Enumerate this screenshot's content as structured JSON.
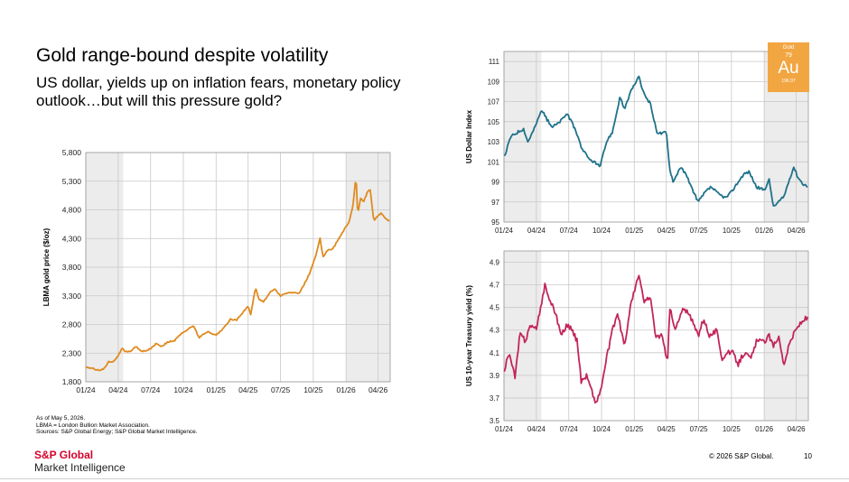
{
  "slide": {
    "title": "Gold range-bound despite volatility",
    "subtitle": "US dollar, yields up on inflation fears, monetary policy outlook…but will this pressure gold?",
    "notes": [
      "As of May 5, 2026.",
      "LBMA = London Bullion Market Association.",
      "Sources: S&P Global Energy; S&P Global Market Intelligence."
    ],
    "logo_brand": "S&P Global",
    "logo_sub": "Market Intelligence",
    "copyright": "© 2026 S&P Global.",
    "page_number": "10"
  },
  "badge": {
    "name": "Gold",
    "number": "79",
    "symbol": "Au",
    "weight": "196.97",
    "color": "#f2a641"
  },
  "chart_data": [
    {
      "type": "line",
      "ylabel": "LBMA gold price ($/oz)",
      "x_ticks": [
        "01/24",
        "04/24",
        "07/24",
        "10/24",
        "01/25",
        "04/25",
        "07/25",
        "10/25",
        "01/26",
        "04/26"
      ],
      "x_range": [
        "2024-01-01",
        "2026-05-05"
      ],
      "ylim": [
        1800,
        5800
      ],
      "y_ticks": [
        1800,
        2300,
        2800,
        3300,
        3800,
        4300,
        4800,
        5300,
        5800
      ],
      "y_tick_labels": [
        "1,800",
        "2,300",
        "2,800",
        "3,300",
        "3,800",
        "4,300",
        "4,800",
        "5,300",
        "5,800"
      ],
      "shaded_periods": [
        [
          "2024-01-01",
          "2024-04-15"
        ],
        [
          "2026-01-01",
          "2026-05-05"
        ]
      ],
      "grid": true,
      "color": "#e08a1e",
      "series": [
        {
          "x": [
            "2024-01-02",
            "2024-01-20",
            "2024-02-10",
            "2024-02-20",
            "2024-03-05",
            "2024-03-20",
            "2024-04-05",
            "2024-04-12",
            "2024-04-20",
            "2024-05-05",
            "2024-05-20",
            "2024-06-05",
            "2024-06-20",
            "2024-07-05",
            "2024-07-17",
            "2024-08-01",
            "2024-08-20",
            "2024-09-05",
            "2024-09-25",
            "2024-10-15",
            "2024-10-30",
            "2024-11-14",
            "2024-11-25",
            "2024-12-10",
            "2024-12-31",
            "2025-01-20",
            "2025-02-10",
            "2025-02-28",
            "2025-03-20",
            "2025-04-01",
            "2025-04-08",
            "2025-04-22",
            "2025-05-01",
            "2025-05-15",
            "2025-06-01",
            "2025-06-15",
            "2025-07-01",
            "2025-07-20",
            "2025-08-05",
            "2025-08-20",
            "2025-09-01",
            "2025-09-20",
            "2025-10-08",
            "2025-10-20",
            "2025-10-28",
            "2025-11-10",
            "2025-11-25",
            "2025-12-10",
            "2025-12-26",
            "2026-01-10",
            "2026-01-20",
            "2026-01-29",
            "2026-02-03",
            "2026-02-10",
            "2026-02-20",
            "2026-03-01",
            "2026-03-10",
            "2026-03-20",
            "2026-04-01",
            "2026-04-10",
            "2026-04-20",
            "2026-05-05"
          ],
          "values": [
            2060,
            2030,
            2000,
            2025,
            2150,
            2160,
            2300,
            2390,
            2320,
            2330,
            2420,
            2330,
            2340,
            2400,
            2470,
            2420,
            2500,
            2510,
            2640,
            2720,
            2780,
            2570,
            2620,
            2680,
            2610,
            2720,
            2890,
            2880,
            3030,
            3120,
            2980,
            3440,
            3240,
            3200,
            3360,
            3420,
            3300,
            3350,
            3360,
            3330,
            3450,
            3680,
            4000,
            4300,
            3980,
            4100,
            4120,
            4280,
            4450,
            4600,
            4850,
            5400,
            4700,
            5000,
            4950,
            5100,
            5150,
            4600,
            4700,
            4750,
            4650,
            4600
          ]
        }
      ]
    },
    {
      "type": "line",
      "ylabel": "US Dollar Index",
      "x_ticks": [
        "01/24",
        "04/24",
        "07/24",
        "10/24",
        "01/25",
        "04/25",
        "07/25",
        "10/25",
        "01/26",
        "04/26"
      ],
      "x_range": [
        "2024-01-01",
        "2026-05-05"
      ],
      "ylim": [
        95,
        112
      ],
      "y_ticks": [
        95,
        97,
        99,
        101,
        103,
        105,
        107,
        109,
        111
      ],
      "shaded_periods": [
        [
          "2024-01-01",
          "2024-04-15"
        ],
        [
          "2026-01-01",
          "2026-05-05"
        ]
      ],
      "grid": true,
      "color": "#1f728a",
      "series": [
        {
          "x": [
            "2024-01-02",
            "2024-01-20",
            "2024-02-10",
            "2024-02-25",
            "2024-03-08",
            "2024-03-25",
            "2024-04-16",
            "2024-05-01",
            "2024-05-15",
            "2024-06-01",
            "2024-06-26",
            "2024-07-20",
            "2024-08-05",
            "2024-08-25",
            "2024-09-10",
            "2024-09-27",
            "2024-10-15",
            "2024-11-01",
            "2024-11-22",
            "2024-12-05",
            "2024-12-20",
            "2025-01-13",
            "2025-01-28",
            "2025-02-15",
            "2025-03-05",
            "2025-03-20",
            "2025-04-01",
            "2025-04-11",
            "2025-04-21",
            "2025-05-10",
            "2025-05-25",
            "2025-06-10",
            "2025-06-30",
            "2025-07-20",
            "2025-08-05",
            "2025-08-25",
            "2025-09-15",
            "2025-10-01",
            "2025-10-20",
            "2025-11-05",
            "2025-11-20",
            "2025-12-10",
            "2026-01-01",
            "2026-01-15",
            "2026-01-27",
            "2026-02-10",
            "2026-02-25",
            "2026-03-15",
            "2026-03-25",
            "2026-04-05",
            "2026-04-20",
            "2026-05-05"
          ],
          "values": [
            101.5,
            103.5,
            104,
            104.3,
            103,
            104.2,
            106.2,
            105.2,
            104.5,
            104.8,
            105.8,
            104.2,
            102.5,
            101.3,
            101,
            100.5,
            103,
            104,
            107.5,
            106.2,
            107.8,
            109.5,
            107.8,
            106.8,
            104,
            103.8,
            104,
            100.2,
            99,
            100.5,
            99.8,
            98.5,
            97,
            98,
            98.5,
            97.8,
            97.4,
            98,
            99,
            99.8,
            100,
            98.5,
            98.2,
            99.2,
            96.5,
            97,
            97.5,
            99.5,
            100.5,
            99.5,
            98.8,
            98.5
          ]
        }
      ]
    },
    {
      "type": "line",
      "ylabel": "US 10-year Treasury yield (%)",
      "x_ticks": [
        "01/24",
        "04/24",
        "07/24",
        "10/24",
        "01/25",
        "04/25",
        "07/25",
        "10/25",
        "01/26",
        "04/26"
      ],
      "x_range": [
        "2024-01-01",
        "2026-05-05"
      ],
      "ylim": [
        3.5,
        5.0
      ],
      "y_ticks": [
        3.5,
        3.7,
        3.9,
        4.1,
        4.3,
        4.5,
        4.7,
        4.9
      ],
      "shaded_periods": [
        [
          "2024-01-01",
          "2024-04-15"
        ],
        [
          "2026-01-01",
          "2026-05-05"
        ]
      ],
      "grid": true,
      "color": "#c2255c",
      "series": [
        {
          "x": [
            "2024-01-02",
            "2024-01-15",
            "2024-02-01",
            "2024-02-15",
            "2024-03-01",
            "2024-03-15",
            "2024-04-01",
            "2024-04-25",
            "2024-05-10",
            "2024-05-25",
            "2024-06-10",
            "2024-06-25",
            "2024-07-10",
            "2024-07-25",
            "2024-08-05",
            "2024-08-20",
            "2024-09-05",
            "2024-09-16",
            "2024-10-01",
            "2024-10-15",
            "2024-11-01",
            "2024-11-15",
            "2024-12-05",
            "2024-12-20",
            "2025-01-14",
            "2025-01-28",
            "2025-02-15",
            "2025-03-01",
            "2025-03-20",
            "2025-04-04",
            "2025-04-11",
            "2025-04-25",
            "2025-05-20",
            "2025-06-10",
            "2025-06-30",
            "2025-07-15",
            "2025-08-01",
            "2025-08-20",
            "2025-09-05",
            "2025-09-20",
            "2025-10-05",
            "2025-10-20",
            "2025-11-05",
            "2025-11-25",
            "2025-12-10",
            "2026-01-01",
            "2026-01-15",
            "2026-01-27",
            "2026-02-10",
            "2026-02-25",
            "2026-03-15",
            "2026-03-30",
            "2026-04-10",
            "2026-04-25",
            "2026-05-05"
          ],
          "values": [
            3.95,
            4.1,
            3.88,
            4.27,
            4.2,
            4.35,
            4.3,
            4.7,
            4.55,
            4.45,
            4.25,
            4.35,
            4.3,
            4.2,
            3.85,
            3.9,
            3.75,
            3.65,
            3.8,
            4.05,
            4.3,
            4.45,
            4.15,
            4.5,
            4.79,
            4.55,
            4.6,
            4.25,
            4.25,
            4.0,
            4.5,
            4.3,
            4.5,
            4.4,
            4.25,
            4.4,
            4.25,
            4.3,
            4.05,
            4.1,
            4.1,
            4.0,
            4.1,
            4.05,
            4.2,
            4.2,
            4.25,
            4.15,
            4.25,
            4.0,
            4.2,
            4.3,
            4.35,
            4.4,
            4.4
          ]
        }
      ]
    }
  ]
}
